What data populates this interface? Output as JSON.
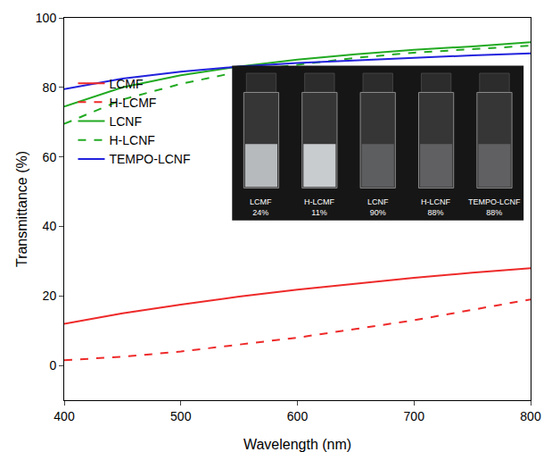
{
  "chart_data": {
    "type": "line",
    "x_label": "Wavelength (nm)",
    "y_label": "Transmittance (%)",
    "x": [
      400,
      450,
      500,
      550,
      600,
      650,
      700,
      750,
      800
    ],
    "series": [
      {
        "name": "LCMF",
        "color": "#ee2a2a",
        "line_style": "solid",
        "values": [
          12,
          15,
          17.5,
          19.8,
          21.8,
          23.5,
          25.2,
          26.7,
          28
        ]
      },
      {
        "name": "H-LCMF",
        "color": "#ee2a2a",
        "line_style": "dash",
        "values": [
          1.5,
          2.5,
          4,
          6,
          8,
          10.5,
          13,
          16,
          19
        ]
      },
      {
        "name": "LCNF",
        "color": "#22aa22",
        "line_style": "solid",
        "values": [
          74.5,
          80,
          83.5,
          86,
          88,
          89.5,
          90.8,
          91.8,
          93
        ]
      },
      {
        "name": "H-LCNF",
        "color": "#22aa22",
        "line_style": "dash",
        "values": [
          69.5,
          76.5,
          81,
          84.5,
          86.5,
          88.5,
          90,
          91,
          92
        ]
      },
      {
        "name": "TEMPO-LCNF",
        "color": "#2222dd",
        "line_style": "solid",
        "values": [
          79.5,
          82.5,
          84.5,
          86,
          87,
          87.8,
          88.5,
          89.2,
          89.8
        ]
      }
    ],
    "xlim": [
      400,
      800
    ],
    "xticks": [
      400,
      500,
      600,
      700,
      800
    ],
    "ylim": [
      -10,
      100
    ],
    "yticks": [
      0,
      20,
      40,
      60,
      80,
      100
    ],
    "grid": false,
    "legend": "left",
    "annotations": [
      {
        "lines": [
          "LCMF",
          "24%"
        ],
        "value": 24
      },
      {
        "lines": [
          "H-LCMF",
          "11%"
        ],
        "value": 11
      },
      {
        "lines": [
          "LCNF",
          "90%"
        ],
        "value": 90
      },
      {
        "lines": [
          "H-LCNF",
          "88%"
        ],
        "value": 88
      },
      {
        "lines": [
          "TEMPO-LCNF",
          "88%"
        ],
        "value": 88
      }
    ]
  }
}
